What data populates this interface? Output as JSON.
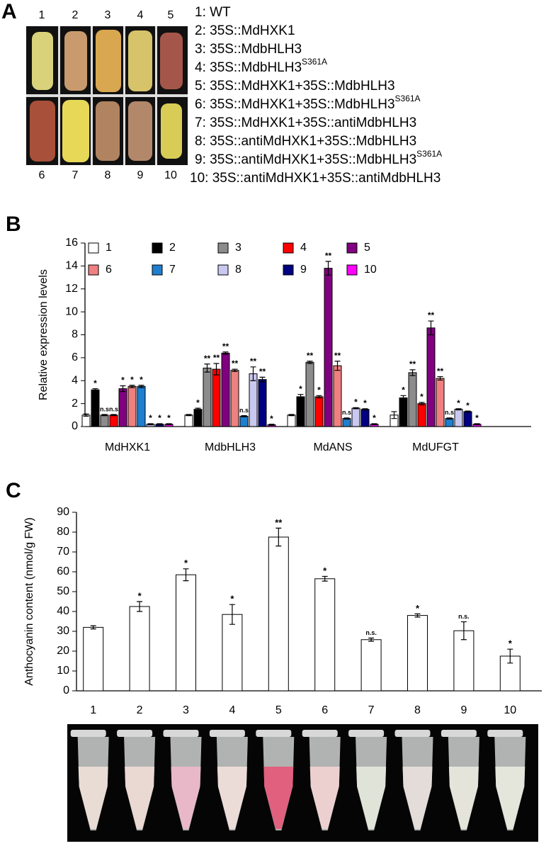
{
  "panel_labels": [
    "A",
    "B",
    "C"
  ],
  "photo_a": {
    "top_labels": [
      "1",
      "2",
      "3",
      "4",
      "5"
    ],
    "bottom_labels": [
      "6",
      "7",
      "8",
      "9",
      "10"
    ],
    "legend": [
      {
        "text": "1: WT"
      },
      {
        "text": "2: 35S::MdHXK1"
      },
      {
        "text": "3: 35S::MdbHLH3"
      },
      {
        "text": "4: 35S::MdbHLH3",
        "sup": "S361A"
      },
      {
        "text": "5: 35S::MdHXK1+35S::MdbHLH3"
      },
      {
        "text": "6: 35S::MdHXK1+35S::MdbHLH3",
        "sup": "S361A"
      },
      {
        "text": "7: 35S::MdHXK1+35S::antiMdbHLH3"
      },
      {
        "text": "8: 35S::antiMdHXK1+35S::MdbHLH3"
      },
      {
        "text": "9: 35S::antiMdHXK1+35S::MdbHLH3",
        "sup": "S361A"
      },
      {
        "text": "10: 35S::antiMdHXK1+35S::antiMdbHLH3"
      }
    ]
  },
  "chart_data": [
    {
      "type": "bar",
      "ylabel": "Relative expression levels",
      "categories": [
        "MdHXK1",
        "MdbHLH3",
        "MdANS",
        "MdUFGT"
      ],
      "ylim": [
        0,
        16
      ],
      "yticks": [
        0,
        2,
        4,
        6,
        8,
        10,
        12,
        14,
        16
      ],
      "legend": "top",
      "series": [
        {
          "name": "1",
          "color": "#ffffff",
          "values": [
            1.0,
            1.0,
            1.0,
            1.0
          ],
          "errors": [
            0.1,
            0.05,
            0.05,
            0.3
          ],
          "annotations": [
            null,
            null,
            null,
            null
          ]
        },
        {
          "name": "2",
          "color": "#000000",
          "values": [
            3.2,
            1.5,
            2.6,
            2.5
          ],
          "errors": [
            0.1,
            0.1,
            0.2,
            0.2
          ],
          "annotations": [
            "*",
            "*",
            "*",
            "*"
          ]
        },
        {
          "name": "3",
          "color": "#8c8c8c",
          "values": [
            1.0,
            5.1,
            5.6,
            4.7
          ],
          "errors": [
            0.05,
            0.35,
            0.1,
            0.25
          ],
          "annotations": [
            "n.s",
            "**",
            "**",
            "**"
          ]
        },
        {
          "name": "4",
          "color": "#ff0000",
          "values": [
            1.0,
            5.0,
            2.6,
            2.0
          ],
          "errors": [
            0.05,
            0.5,
            0.1,
            0.1
          ],
          "annotations": [
            "n.s",
            "**",
            "*",
            "*"
          ]
        },
        {
          "name": "5",
          "color": "#800080",
          "values": [
            3.3,
            6.4,
            13.8,
            8.6
          ],
          "errors": [
            0.25,
            0.1,
            0.6,
            0.6
          ],
          "annotations": [
            "*",
            "**",
            "**",
            "**"
          ]
        },
        {
          "name": "6",
          "color": "#f08080",
          "values": [
            3.5,
            4.9,
            5.3,
            4.2
          ],
          "errors": [
            0.1,
            0.1,
            0.4,
            0.15
          ],
          "annotations": [
            "*",
            "**",
            "**",
            "**"
          ]
        },
        {
          "name": "7",
          "color": "#1e7fd0",
          "values": [
            3.5,
            0.9,
            0.7,
            0.7
          ],
          "errors": [
            0.1,
            0.05,
            0.05,
            0.05
          ],
          "annotations": [
            "*",
            "n.s",
            "n.s",
            "n.s"
          ]
        },
        {
          "name": "8",
          "color": "#c8c8f0",
          "values": [
            0.2,
            4.6,
            1.6,
            1.5
          ],
          "errors": [
            0.05,
            0.6,
            0.05,
            0.05
          ],
          "annotations": [
            "*",
            "**",
            "*",
            "*"
          ]
        },
        {
          "name": "9",
          "color": "#000080",
          "values": [
            0.2,
            4.1,
            1.5,
            1.3
          ],
          "errors": [
            0.05,
            0.2,
            0.05,
            0.05
          ],
          "annotations": [
            "*",
            "**",
            "*",
            "*"
          ]
        },
        {
          "name": "10",
          "color": "#ff00ff",
          "values": [
            0.2,
            0.15,
            0.2,
            0.2
          ],
          "errors": [
            0.05,
            0.05,
            0.05,
            0.05
          ],
          "annotations": [
            "*",
            "*",
            "*",
            "*"
          ]
        }
      ]
    },
    {
      "type": "bar",
      "ylabel": "Anthocyanin content (nmol/g FW)",
      "categories": [
        "1",
        "2",
        "3",
        "4",
        "5",
        "6",
        "7",
        "8",
        "9",
        "10"
      ],
      "values": [
        32,
        42.5,
        58.5,
        38.5,
        77.5,
        56.5,
        25.8,
        38,
        30.3,
        17.5
      ],
      "errors": [
        0.8,
        2.5,
        3,
        5,
        4.5,
        1.2,
        0.8,
        0.8,
        4.5,
        3.5
      ],
      "annotations": [
        null,
        "*",
        "*",
        "*",
        "**",
        "*",
        "n.s.",
        "*",
        "n.s.",
        "*"
      ],
      "color": "#ffffff",
      "ylim": [
        0,
        90
      ],
      "yticks": [
        0,
        10,
        20,
        30,
        40,
        50,
        60,
        70,
        80,
        90
      ]
    }
  ]
}
